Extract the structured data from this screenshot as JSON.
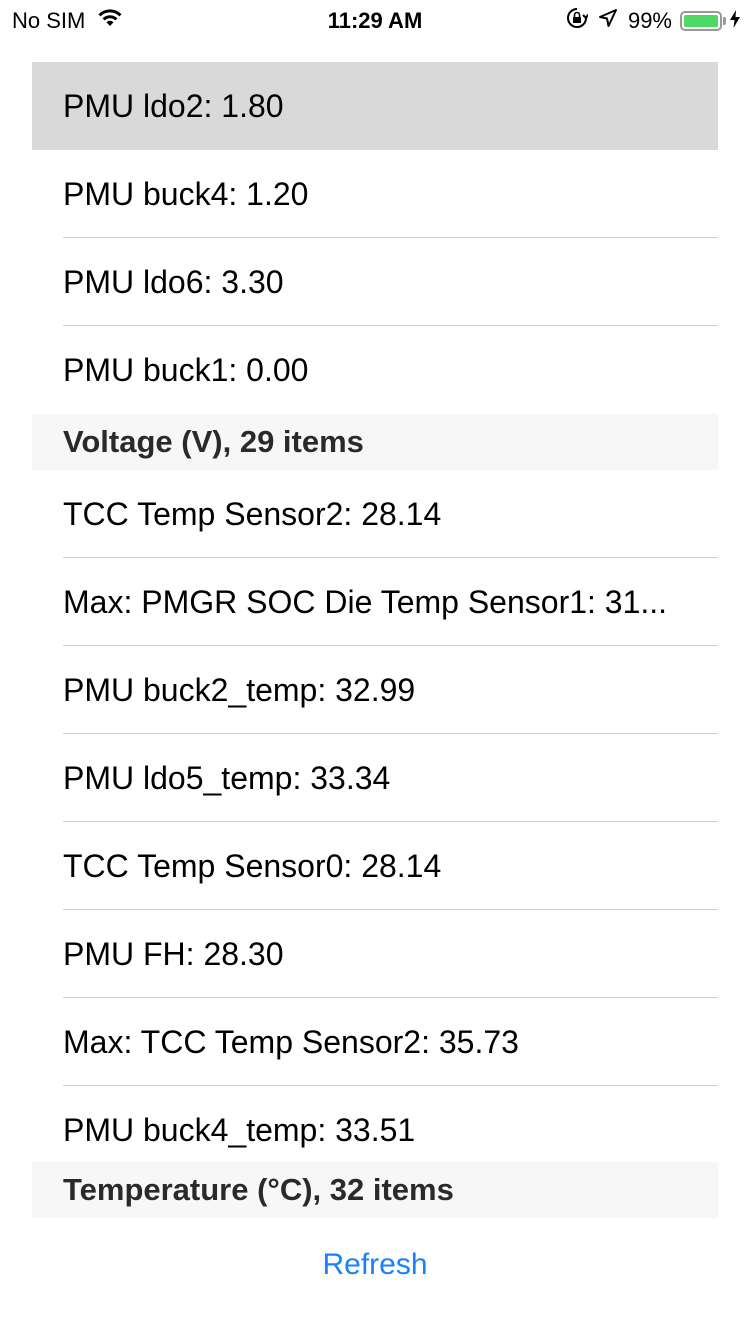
{
  "status_bar": {
    "carrier": "No SIM",
    "time": "11:29 AM",
    "battery_percent": "99%",
    "battery_level": 0.99,
    "battery_color": "#4cd964",
    "icons": [
      "wifi-icon",
      "orientation-lock-icon",
      "location-arrow-icon",
      "battery-icon",
      "charging-bolt-icon"
    ]
  },
  "voltage_section": {
    "rows": [
      {
        "label": "PMU ldo2: 1.80",
        "selected": true
      },
      {
        "label": "PMU buck4: 1.20"
      },
      {
        "label": "PMU ldo6: 3.30"
      },
      {
        "label": "PMU buck1: 0.00"
      }
    ],
    "footer": "Voltage (V), 29 items"
  },
  "temperature_section": {
    "rows": [
      {
        "label": "TCC Temp Sensor2: 28.14"
      },
      {
        "label": "Max: PMGR SOC Die Temp Sensor1: 31..."
      },
      {
        "label": "PMU buck2_temp: 32.99"
      },
      {
        "label": "PMU ldo5_temp: 33.34"
      },
      {
        "label": "TCC Temp Sensor0: 28.14"
      },
      {
        "label": "PMU FH: 28.30"
      },
      {
        "label": "Max: TCC Temp Sensor2: 35.73"
      },
      {
        "label": "PMU buck4_temp: 33.51"
      }
    ],
    "footer": "Temperature (°C), 32 items"
  },
  "refresh_label": "Refresh",
  "accent_color": "#1a82f7"
}
